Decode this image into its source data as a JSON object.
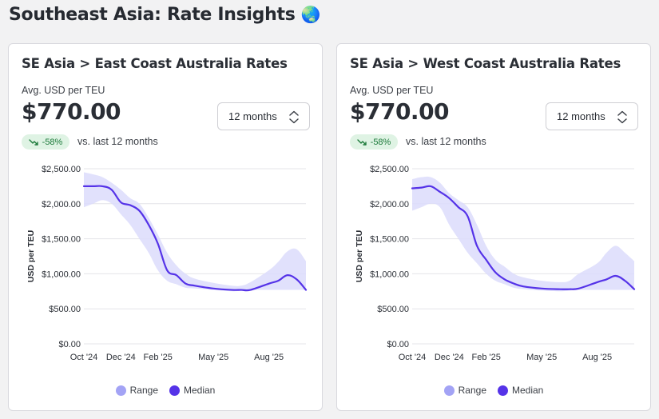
{
  "page": {
    "title": "Southeast Asia: Rate Insights",
    "title_emoji": "🌏"
  },
  "colors": {
    "range_fill": "#dcdcfb",
    "range_legend": "#a3a3f5",
    "median_line": "#5533e8",
    "badge_bg": "#dff3e4",
    "badge_text": "#1c7a3a"
  },
  "cards": [
    {
      "title": "SE Asia > East Coast Australia Rates",
      "metric_label": "Avg. USD per TEU",
      "metric_value": "$770.00",
      "period_select": "12 months",
      "delta_badge": "-58%",
      "delta_icon": "trend-down-icon",
      "delta_text": "vs. last 12 months"
    },
    {
      "title": "SE Asia > West Coast Australia Rates",
      "metric_label": "Avg. USD per TEU",
      "metric_value": "$770.00",
      "period_select": "12 months",
      "delta_badge": "-58%",
      "delta_icon": "trend-down-icon",
      "delta_text": "vs. last 12 months"
    }
  ],
  "legend": {
    "range": "Range",
    "median": "Median"
  },
  "chart_data": [
    {
      "type": "area",
      "title": "",
      "xlabel": "",
      "ylabel": "USD per TEU",
      "ylim": [
        0,
        2500
      ],
      "y_ticks": [
        "$0.00",
        "$500.00",
        "$1,000.00",
        "$1,500.00",
        "$2,000.00",
        "$2,500.00"
      ],
      "y_tick_values": [
        0,
        500,
        1000,
        1500,
        2000,
        2500
      ],
      "x_ticks": [
        "Oct '24",
        "Dec '24",
        "Feb '25",
        "May '25",
        "Aug '25"
      ],
      "x_tick_values": [
        0,
        2,
        4,
        7,
        10
      ],
      "xlim": [
        0,
        12
      ],
      "grid": true,
      "legend_position": "bottom",
      "series": [
        {
          "name": "Median",
          "x": [
            0,
            0.5,
            1,
            1.5,
            2,
            2.5,
            3,
            3.5,
            4,
            4.5,
            5,
            5.5,
            6,
            7,
            8,
            8.5,
            9,
            10,
            10.5,
            11,
            11.5,
            12
          ],
          "y": [
            2250,
            2250,
            2250,
            2200,
            2020,
            1980,
            1900,
            1700,
            1430,
            1050,
            980,
            860,
            830,
            790,
            770,
            770,
            770,
            860,
            900,
            980,
            920,
            770
          ]
        },
        {
          "name": "Range",
          "x": [
            0,
            0.5,
            1,
            1.5,
            2,
            2.5,
            3,
            3.5,
            4,
            4.5,
            5,
            5.5,
            6,
            7,
            8,
            8.5,
            9,
            10,
            10.5,
            11,
            11.5,
            12
          ],
          "upper": [
            2450,
            2420,
            2380,
            2300,
            2200,
            2080,
            2000,
            1800,
            1560,
            1300,
            1120,
            1000,
            930,
            870,
            830,
            830,
            880,
            1050,
            1170,
            1320,
            1350,
            1180
          ],
          "lower": [
            1950,
            2000,
            2050,
            2000,
            1850,
            1700,
            1500,
            1300,
            1050,
            900,
            850,
            800,
            790,
            770,
            750,
            760,
            770,
            770,
            770,
            770,
            770,
            770
          ]
        }
      ]
    },
    {
      "type": "area",
      "title": "",
      "xlabel": "",
      "ylabel": "USD per TEU",
      "ylim": [
        0,
        2500
      ],
      "y_ticks": [
        "$0.00",
        "$500.00",
        "$1,000.00",
        "$1,500.00",
        "$2,000.00",
        "$2,500.00"
      ],
      "y_tick_values": [
        0,
        500,
        1000,
        1500,
        2000,
        2500
      ],
      "x_ticks": [
        "Oct '24",
        "Dec '24",
        "Feb '25",
        "May '25",
        "Aug '25"
      ],
      "x_tick_values": [
        0,
        2,
        4,
        7,
        10
      ],
      "xlim": [
        0,
        12
      ],
      "grid": true,
      "legend_position": "bottom",
      "series": [
        {
          "name": "Median",
          "x": [
            0,
            0.5,
            1,
            1.5,
            2,
            2.5,
            3,
            3.5,
            4,
            4.5,
            5,
            5.5,
            6,
            7,
            8,
            8.5,
            9,
            10,
            10.5,
            11,
            11.5,
            12
          ],
          "y": [
            2220,
            2230,
            2250,
            2170,
            2080,
            1950,
            1820,
            1400,
            1200,
            1020,
            920,
            860,
            820,
            790,
            780,
            780,
            790,
            880,
            920,
            970,
            900,
            780
          ]
        },
        {
          "name": "Range",
          "x": [
            0,
            0.5,
            1,
            1.5,
            2,
            2.5,
            3,
            3.5,
            4,
            4.5,
            5,
            5.5,
            6,
            7,
            8,
            8.5,
            9,
            10,
            10.5,
            11,
            11.5,
            12
          ],
          "upper": [
            2350,
            2380,
            2380,
            2300,
            2150,
            2050,
            1950,
            1700,
            1400,
            1200,
            1100,
            1000,
            950,
            900,
            880,
            900,
            1000,
            1150,
            1300,
            1400,
            1300,
            1180
          ],
          "lower": [
            1900,
            1950,
            2000,
            1950,
            1700,
            1500,
            1300,
            1150,
            1000,
            900,
            850,
            800,
            780,
            760,
            750,
            760,
            770,
            770,
            770,
            770,
            770,
            770
          ]
        }
      ]
    }
  ]
}
